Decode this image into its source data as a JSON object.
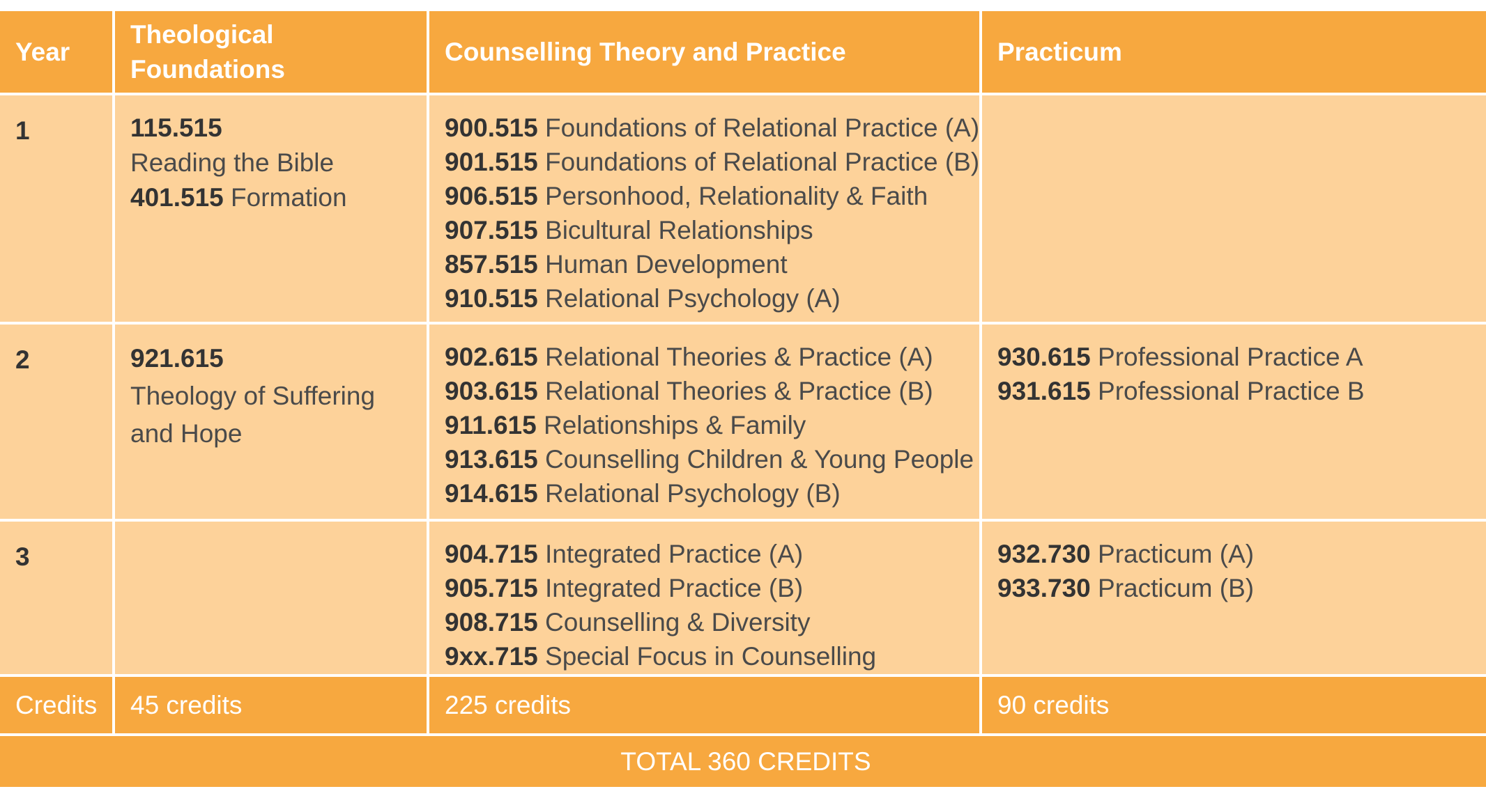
{
  "headers": [
    "Year",
    "Theological Foundations",
    "Counselling Theory and Practice",
    "Practicum"
  ],
  "rows": [
    {
      "year": "1",
      "theological": [
        {
          "code": "115.515",
          "title": "Reading the Bible",
          "wrap": true
        },
        {
          "code": "401.515",
          "title": "Formation",
          "wrap": false
        }
      ],
      "counselling": [
        {
          "code": "900.515",
          "title": "Foundations of Relational Practice (A)"
        },
        {
          "code": "901.515",
          "title": "Foundations of Relational Practice (B)"
        },
        {
          "code": "906.515",
          "title": "Personhood, Relationality & Faith"
        },
        {
          "code": "907.515",
          "title": "Bicultural Relationships"
        },
        {
          "code": "857.515",
          "title": "Human Development"
        },
        {
          "code": "910.515",
          "title": "Relational Psychology (A)"
        }
      ],
      "practicum": []
    },
    {
      "year": "2",
      "theological": [
        {
          "code": "921.615",
          "title": "Theology of Suffering and Hope",
          "wrap": true
        }
      ],
      "counselling": [
        {
          "code": "902.615",
          "title": "Relational Theories & Practice (A)"
        },
        {
          "code": "903.615",
          "title": "Relational Theories & Practice (B)"
        },
        {
          "code": "911.615",
          "title": "Relationships & Family"
        },
        {
          "code": "913.615",
          "title": "Counselling Children & Young People"
        },
        {
          "code": "914.615",
          "title": "Relational Psychology (B)"
        }
      ],
      "practicum": [
        {
          "code": "930.615",
          "title": "Professional Practice A"
        },
        {
          "code": "931.615",
          "title": "Professional Practice B"
        }
      ]
    },
    {
      "year": "3",
      "theological": [],
      "counselling": [
        {
          "code": "904.715",
          "title": "Integrated Practice (A)"
        },
        {
          "code": "905.715",
          "title": "Integrated Practice (B)"
        },
        {
          "code": "908.715",
          "title": "Counselling & Diversity"
        },
        {
          "code": "9xx.715",
          "title": "Special Focus in Counselling"
        }
      ],
      "practicum": [
        {
          "code": "932.730",
          "title": "Practicum (A)"
        },
        {
          "code": "933.730",
          "title": "Practicum (B)"
        }
      ]
    }
  ],
  "credits": {
    "label": "Credits",
    "theological": "45 credits",
    "counselling": "225 credits",
    "practicum": "90 credits"
  },
  "total": "TOTAL 360 CREDITS",
  "colors": {
    "header": "#f7a83f",
    "body": "#fdd29a",
    "text": "#333333"
  }
}
